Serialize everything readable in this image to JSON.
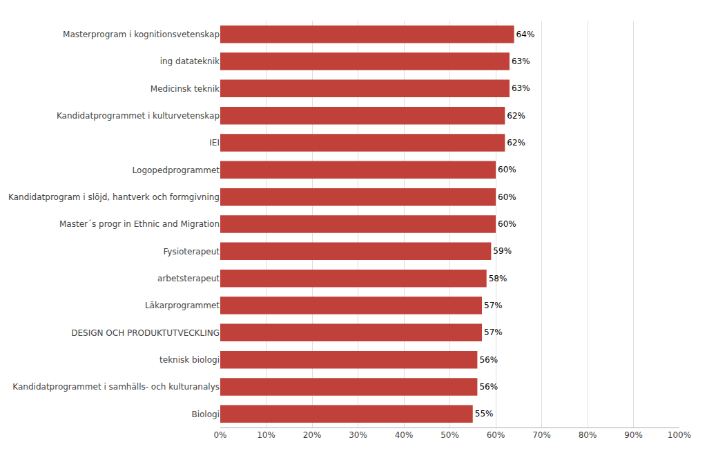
{
  "chart_data": {
    "type": "bar",
    "orientation": "horizontal",
    "categories": [
      "Biologi",
      "Kandidatprogrammet i samhälls- och kulturanalys",
      "teknisk biologi",
      "DESIGN OCH PRODUKTUTVECKLING",
      "Läkarprogrammet",
      "arbetsterapeut",
      "Fysioterapeut",
      "Master´s progr in Ethnic and Migration",
      "Kandidatprogram i slöjd, hantverk och formgivning",
      "Logopedprogrammet",
      "IEI",
      "Kandidatprogrammet i kulturvetenskap",
      "Medicinsk teknik",
      "ing datateknik",
      "Masterprogram i kognitionsvetenskap"
    ],
    "values": [
      55,
      56,
      56,
      57,
      57,
      58,
      59,
      60,
      60,
      60,
      62,
      62,
      63,
      63,
      64
    ],
    "value_labels": [
      "55%",
      "56%",
      "56%",
      "57%",
      "57%",
      "58%",
      "59%",
      "60%",
      "60%",
      "60%",
      "62%",
      "62%",
      "63%",
      "63%",
      "64%"
    ],
    "data_labels": true,
    "color": "#c0403a",
    "xlim": [
      0,
      100
    ],
    "xticks": [
      {
        "value": 0,
        "label": "0%"
      },
      {
        "value": 10,
        "label": "10%"
      },
      {
        "value": 20,
        "label": "20%"
      },
      {
        "value": 30,
        "label": "30%"
      },
      {
        "value": 40,
        "label": "40%"
      },
      {
        "value": 50,
        "label": "50%"
      },
      {
        "value": 60,
        "label": "60%"
      },
      {
        "value": 70,
        "label": "70%"
      },
      {
        "value": 80,
        "label": "80%"
      },
      {
        "value": 90,
        "label": "90%"
      },
      {
        "value": 100,
        "label": "100%"
      }
    ],
    "grid": true
  }
}
